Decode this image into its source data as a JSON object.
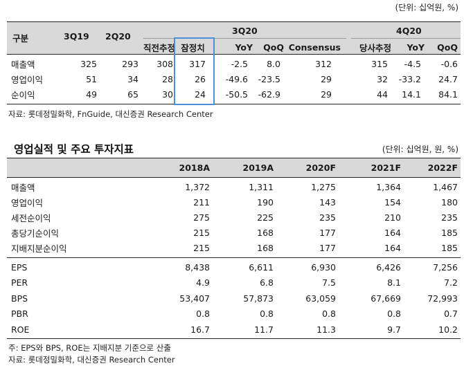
{
  "table1": {
    "unit": "(단위: 십억원, %)",
    "header": {
      "gubun": "구분",
      "col_3q19": "3Q19",
      "col_2q20": "2Q20",
      "group_3q20": "3Q20",
      "group_4q20": "4Q20",
      "sub_3q20": [
        "직전추정",
        "잠정치",
        "YoY",
        "QoQ",
        "Consensus"
      ],
      "sub_4q20": [
        "당사추정",
        "YoY",
        "QoQ"
      ]
    },
    "rows": [
      {
        "label": "매출액",
        "values": [
          "325",
          "293",
          "308",
          "317",
          "-2.5",
          "8.0",
          "312",
          "315",
          "-4.5",
          "-0.6"
        ]
      },
      {
        "label": "영업이익",
        "values": [
          "51",
          "34",
          "28",
          "26",
          "-49.6",
          "-23.5",
          "29",
          "32",
          "-33.2",
          "24.7"
        ]
      },
      {
        "label": "순이익",
        "values": [
          "49",
          "65",
          "30",
          "24",
          "-50.5",
          "-62.9",
          "29",
          "44",
          "14.1",
          "84.1"
        ]
      }
    ],
    "source": "자료: 롯데정밀화학, FnGuide, 대신증권 Research Center"
  },
  "table2": {
    "title": "영업실적 및 주요 투자지표",
    "unit": "(단위: 십억원, 원, %)",
    "columns": [
      "2018A",
      "2019A",
      "2020F",
      "2021F",
      "2022F"
    ],
    "rows_a": [
      {
        "label": "매출액",
        "values": [
          "1,372",
          "1,311",
          "1,275",
          "1,364",
          "1,467"
        ]
      },
      {
        "label": "영업이익",
        "values": [
          "211",
          "190",
          "143",
          "154",
          "180"
        ]
      },
      {
        "label": "세전순이익",
        "values": [
          "275",
          "225",
          "235",
          "210",
          "235"
        ]
      },
      {
        "label": "총당기순이익",
        "values": [
          "215",
          "168",
          "177",
          "164",
          "185"
        ]
      },
      {
        "label": "지배지분순이익",
        "values": [
          "215",
          "168",
          "177",
          "164",
          "185"
        ]
      }
    ],
    "rows_b": [
      {
        "label": "EPS",
        "values": [
          "8,438",
          "6,611",
          "6,930",
          "6,426",
          "7,256"
        ]
      },
      {
        "label": "PER",
        "values": [
          "4.9",
          "6.8",
          "7.5",
          "8.1",
          "7.2"
        ]
      },
      {
        "label": "BPS",
        "values": [
          "53,407",
          "57,873",
          "63,059",
          "67,669",
          "72,993"
        ]
      },
      {
        "label": "PBR",
        "values": [
          "0.8",
          "0.8",
          "0.8",
          "0.8",
          "0.7"
        ]
      },
      {
        "label": "ROE",
        "values": [
          "16.7",
          "11.7",
          "11.3",
          "9.7",
          "10.2"
        ]
      }
    ],
    "note": "주: EPS와 BPS, ROE는 지배지분 기준으로 산출",
    "source": "자료: 롯데정밀화학, 대신증권 Research Center"
  },
  "colors": {
    "header_band": "#d9d9d9",
    "highlight_box": "#4a90d9",
    "rule": "#222222"
  }
}
